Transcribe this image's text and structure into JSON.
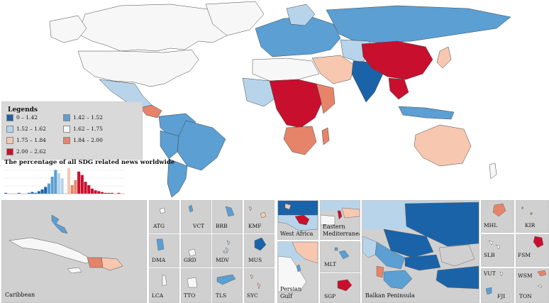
{
  "legend": {
    "title": "Legends",
    "items": [
      {
        "label": "0 – 1.42",
        "color": "#1b63a8"
      },
      {
        "label": "1.42 – 1.52",
        "color": "#5b9fd3"
      },
      {
        "label": "1.52 – 1.62",
        "color": "#b8d4ea"
      },
      {
        "label": "1.62 – 1.75",
        "color": "#f7f7f7"
      },
      {
        "label": "1.75 – 1.84",
        "color": "#f7c7b0"
      },
      {
        "label": "1.84 – 2.00",
        "color": "#e6846a"
      },
      {
        "label": "2.00 – 2.62",
        "color": "#c8102e"
      }
    ]
  },
  "histogram": {
    "title": "The percentage of all SDG related news worldwide",
    "bars": [
      1,
      0,
      0,
      0,
      1,
      0,
      0,
      1,
      2,
      1,
      3,
      5,
      8,
      12,
      20,
      28,
      24,
      18,
      6,
      30,
      10,
      16,
      26,
      22,
      14,
      10,
      6,
      4,
      3,
      2,
      1,
      1,
      1,
      0,
      1
    ]
  },
  "regions": {
    "caribbean": "Caribbean",
    "west_africa": "West Africa",
    "eastern_med_line1": "Eastern",
    "eastern_med_line2": "Mediterranean",
    "persian_gulf_line1": "Persian",
    "persian_gulf_line2": "Gulf",
    "balkan": "Balkan Peninsula"
  },
  "small_states": {
    "atg": "ATG",
    "vct": "VCT",
    "brb": "BRB",
    "kmf": "KMF",
    "dma": "DMA",
    "grd": "GRD",
    "mdv": "MDV",
    "mus": "MUS",
    "lca": "LCA",
    "tto": "TTO",
    "tls": "TLS",
    "syc": "SYC",
    "mlt": "MLT",
    "sgp": "SGP",
    "mhl": "MHL",
    "kir": "KIR",
    "slb": "SLB",
    "fsm": "FSM",
    "vut": "VUT",
    "wsm": "WSM",
    "fji": "FJI",
    "ton": "TON"
  }
}
